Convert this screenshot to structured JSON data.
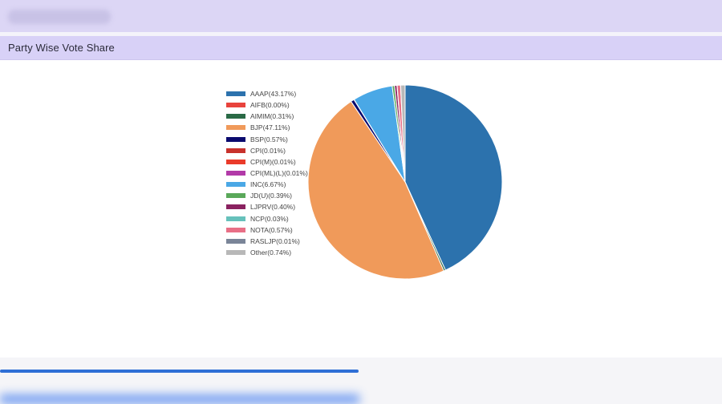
{
  "card": {
    "title": "Party Wise Vote Share"
  },
  "chart_data": {
    "type": "pie",
    "labels": [
      "AAAP(43.17%)",
      "AIFB(0.00%)",
      "AIMIM(0.31%)",
      "BJP(47.11%)",
      "BSP(0.57%)",
      "CPI(0.01%)",
      "CPI(M)(0.01%)",
      "CPI(ML)(L)(0.01%)",
      "INC(6.67%)",
      "JD(U)(0.39%)",
      "LJPRV(0.40%)",
      "NCP(0.03%)",
      "NOTA(0.57%)",
      "RASLJP(0.01%)",
      "Other(0.74%)"
    ],
    "categories": [
      "AAAP",
      "AIFB",
      "AIMIM",
      "BJP",
      "BSP",
      "CPI",
      "CPI(M)",
      "CPI(ML)(L)",
      "INC",
      "JD(U)",
      "LJPRV",
      "NCP",
      "NOTA",
      "RASLJP",
      "Other"
    ],
    "values": [
      43.17,
      0.0,
      0.31,
      47.11,
      0.57,
      0.01,
      0.01,
      0.01,
      6.67,
      0.39,
      0.4,
      0.03,
      0.57,
      0.01,
      0.74
    ],
    "colors": [
      "#2c72ad",
      "#e8433c",
      "#2a6a46",
      "#f09a5a",
      "#0a0a6e",
      "#c8322c",
      "#ea3b2a",
      "#b23aa8",
      "#4aa8e6",
      "#5aa85a",
      "#8a2260",
      "#66c1bb",
      "#e86f86",
      "#7a8598",
      "#b8b8b8"
    ],
    "start_angle_deg": 0,
    "direction": "clockwise",
    "legend_position": "left",
    "title": ""
  }
}
